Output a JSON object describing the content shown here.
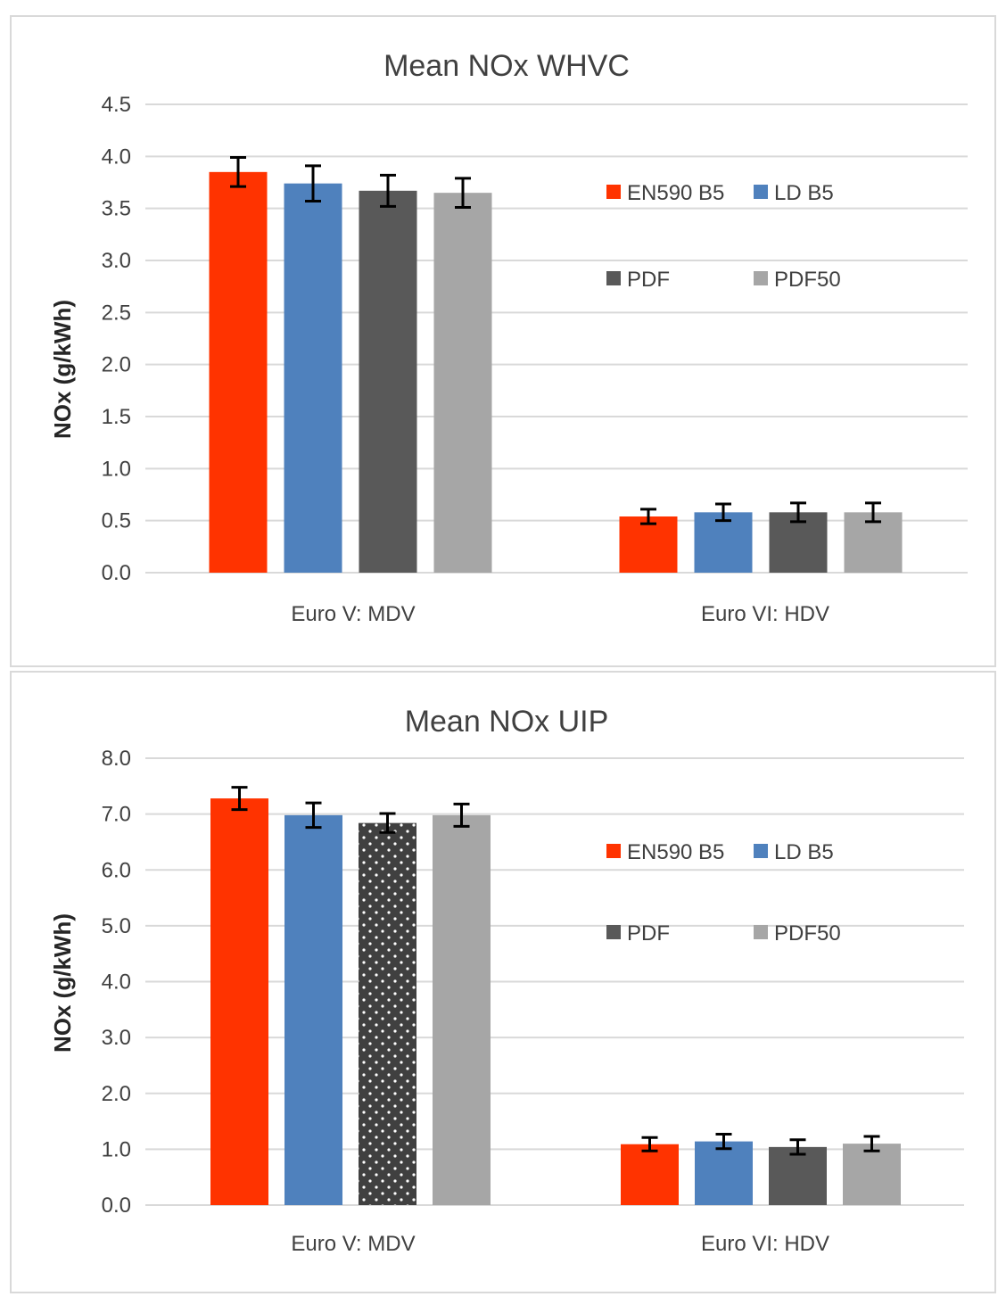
{
  "chart_data": [
    {
      "type": "bar",
      "title": "Mean NOx WHVC",
      "ylabel": "NOx (g/kWh)",
      "xlabel": "",
      "ylim": [
        0,
        4.5
      ],
      "yticks": [
        "0.0",
        "0.5",
        "1.0",
        "1.5",
        "2.0",
        "2.5",
        "3.0",
        "3.5",
        "4.0",
        "4.5"
      ],
      "categories": [
        "Euro V: MDV",
        "Euro VI: HDV"
      ],
      "series": [
        {
          "name": "EN590 B5",
          "color": "#ff3300",
          "values": [
            3.85,
            0.54
          ],
          "errors": [
            0.14,
            0.07
          ]
        },
        {
          "name": "LD B5",
          "color": "#4f81bd",
          "values": [
            3.74,
            0.58
          ],
          "errors": [
            0.17,
            0.08
          ]
        },
        {
          "name": "PDF",
          "color": "#595959",
          "values": [
            3.67,
            0.58
          ],
          "errors": [
            0.15,
            0.09
          ]
        },
        {
          "name": "PDF50",
          "color": "#a6a6a6",
          "values": [
            3.65,
            0.58
          ],
          "errors": [
            0.14,
            0.09
          ]
        }
      ],
      "grid": true,
      "legend": "right"
    },
    {
      "type": "bar",
      "title": "Mean NOx UIP",
      "ylabel": "NOx (g/kWh)",
      "xlabel": "",
      "ylim": [
        0,
        8
      ],
      "yticks": [
        "0.0",
        "1.0",
        "2.0",
        "3.0",
        "4.0",
        "5.0",
        "6.0",
        "7.0",
        "8.0"
      ],
      "categories": [
        "Euro V: MDV",
        "Euro VI: HDV"
      ],
      "series": [
        {
          "name": "EN590 B5",
          "color": "#ff3300",
          "values": [
            7.28,
            1.09
          ],
          "errors": [
            0.2,
            0.12
          ]
        },
        {
          "name": "LD B5",
          "color": "#4f81bd",
          "values": [
            6.98,
            1.14
          ],
          "errors": [
            0.22,
            0.13
          ]
        },
        {
          "name": "PDF",
          "color": "#595959",
          "values": [
            6.84,
            1.04
          ],
          "errors": [
            0.17,
            0.13
          ],
          "pattern_first_category": "dotted"
        },
        {
          "name": "PDF50",
          "color": "#a6a6a6",
          "values": [
            6.98,
            1.1
          ],
          "errors": [
            0.2,
            0.13
          ]
        }
      ],
      "grid": true,
      "legend": "right"
    }
  ]
}
